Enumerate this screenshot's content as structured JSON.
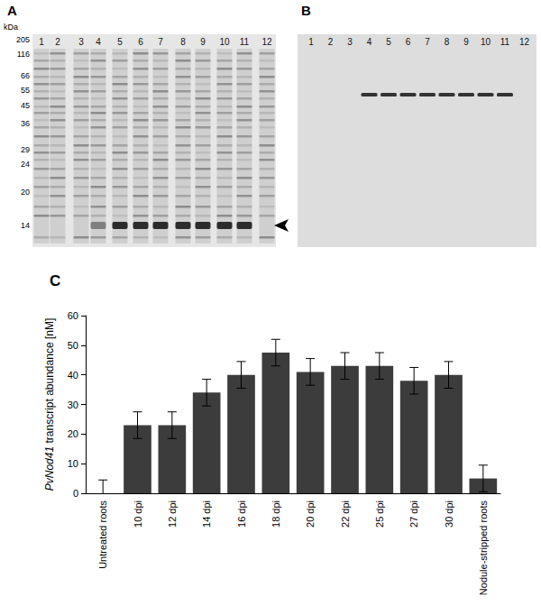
{
  "panel_a": {
    "label": "A",
    "unit": "kDa",
    "markers": [
      205,
      116,
      66,
      55,
      45,
      36,
      29,
      24,
      20,
      14
    ],
    "lanes": [
      1,
      2,
      3,
      4,
      5,
      6,
      7,
      8,
      9,
      10,
      11,
      12
    ],
    "strong_band_lanes": [
      4,
      5,
      6,
      7,
      8,
      9,
      10,
      11
    ]
  },
  "panel_b": {
    "label": "B",
    "lanes": [
      1,
      2,
      3,
      4,
      5,
      6,
      7,
      8,
      9,
      10,
      11,
      12
    ],
    "band_lanes": [
      4,
      5,
      6,
      7,
      8,
      9,
      10,
      11
    ]
  },
  "chart_data": {
    "type": "bar",
    "title": "C",
    "ylabel": "PvNod41 transcript abundance [nM]",
    "categories": [
      "Untreated roots",
      "10 dpi",
      "12 dpi",
      "14 dpi",
      "16 dpi",
      "18 dpi",
      "20 dpi",
      "22 dpi",
      "25 dpi",
      "27 dpi",
      "30 dpi",
      "Nodule-stripped roots"
    ],
    "values": [
      0,
      23,
      23,
      34,
      40,
      47.5,
      41,
      43,
      43,
      38,
      40,
      5
    ],
    "errors": [
      4.5,
      4.5,
      4.5,
      4.5,
      4.5,
      4.5,
      4.5,
      4.5,
      4.5,
      4.5,
      4.5,
      4.5
    ],
    "color": "#3c3c3c",
    "ylim": [
      0,
      60
    ],
    "yticks": [
      0,
      10,
      20,
      30,
      40,
      50,
      60
    ],
    "grid": false
  }
}
